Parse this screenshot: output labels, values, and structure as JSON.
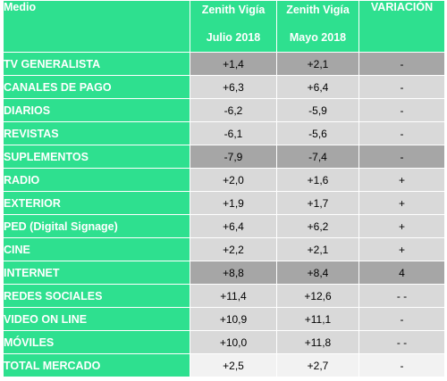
{
  "header": {
    "col0": "Medio",
    "col1_line1": "Zenith Vigía",
    "col1_line2": "Julio 2018",
    "col2_line1": "Zenith Vigía",
    "col2_line2": "Mayo 2018",
    "col3": "VARIACIÓN"
  },
  "colors": {
    "green": "#2ee08f",
    "grey_dark": "#a6a6a6",
    "grey_light": "#d9d9d9",
    "grey_lightest": "#f2f2f2"
  },
  "rows": [
    {
      "medio": "TV GENERALISTA",
      "julio": "+1,4",
      "mayo": "+2,1",
      "variacion": "-",
      "shade": "dark"
    },
    {
      "medio": "CANALES DE PAGO",
      "julio": "+6,3",
      "mayo": "+6,4",
      "variacion": "-",
      "shade": "light"
    },
    {
      "medio": "DIARIOS",
      "julio": "-6,2",
      "mayo": "-5,9",
      "variacion": "-",
      "shade": "light"
    },
    {
      "medio": "REVISTAS",
      "julio": "-6,1",
      "mayo": "-5,6",
      "variacion": "-",
      "shade": "light"
    },
    {
      "medio": "SUPLEMENTOS",
      "julio": "-7,9",
      "mayo": "-7,4",
      "variacion": "-",
      "shade": "dark"
    },
    {
      "medio": "RADIO",
      "julio": "+2,0",
      "mayo": "+1,6",
      "variacion": "+",
      "shade": "light"
    },
    {
      "medio": "EXTERIOR",
      "julio": "+1,9",
      "mayo": "+1,7",
      "variacion": "+",
      "shade": "light"
    },
    {
      "medio": "PED (Digital Signage)",
      "julio": "+6,4",
      "mayo": "+6,2",
      "variacion": "+",
      "shade": "light"
    },
    {
      "medio": "CINE",
      "julio": "+2,2",
      "mayo": "+2,1",
      "variacion": "+",
      "shade": "light"
    },
    {
      "medio": "INTERNET",
      "julio": "+8,8",
      "mayo": "+8,4",
      "variacion": "4",
      "shade": "dark"
    },
    {
      "medio": "REDES SOCIALES",
      "julio": "+11,4",
      "mayo": "+12,6",
      "variacion": "- -",
      "shade": "light"
    },
    {
      "medio": "VIDEO ON LINE",
      "julio": "+10,9",
      "mayo": "+11,1",
      "variacion": "-",
      "shade": "light"
    },
    {
      "medio": "MÓVILES",
      "julio": "+10,0",
      "mayo": "+11,8",
      "variacion": "- -",
      "shade": "light"
    },
    {
      "medio": "TOTAL MERCADO",
      "julio": "+2,5",
      "mayo": "+2,7",
      "variacion": "-",
      "shade": "lightest"
    }
  ]
}
